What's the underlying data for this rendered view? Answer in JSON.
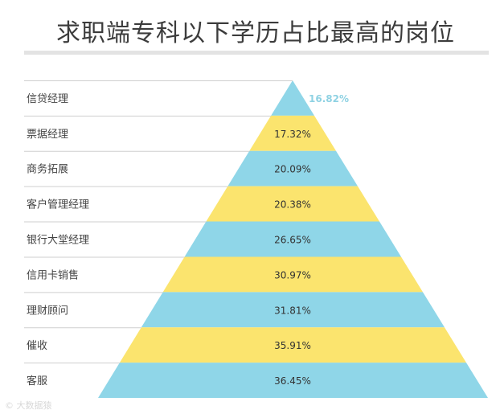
{
  "title": "求职端专科以下学历占比最高的岗位",
  "watermark": "大数据猿",
  "colors": {
    "blue": "#8fd6e8",
    "yellow": "#fbe46e",
    "line": "#cfcfcf",
    "outside_label": "#8fd2e3"
  },
  "chart_data": {
    "type": "bar",
    "shape": "pyramid",
    "categories": [
      "信贷经理",
      "票据经理",
      "商务拓展",
      "客户管理经理",
      "银行大堂经理",
      "信用卡销售",
      "理财顾问",
      "催收",
      "客服"
    ],
    "values": [
      16.82,
      17.32,
      20.09,
      20.38,
      26.65,
      30.97,
      31.81,
      35.91,
      36.45
    ],
    "value_labels": [
      "16.82%",
      "17.32%",
      "20.09%",
      "20.38%",
      "26.65%",
      "30.97%",
      "31.81%",
      "35.91%",
      "36.45%"
    ],
    "unit": "%",
    "title": "求职端专科以下学历占比最高的岗位",
    "colors_alternating": [
      "#8fd6e8",
      "#fbe46e"
    ]
  }
}
